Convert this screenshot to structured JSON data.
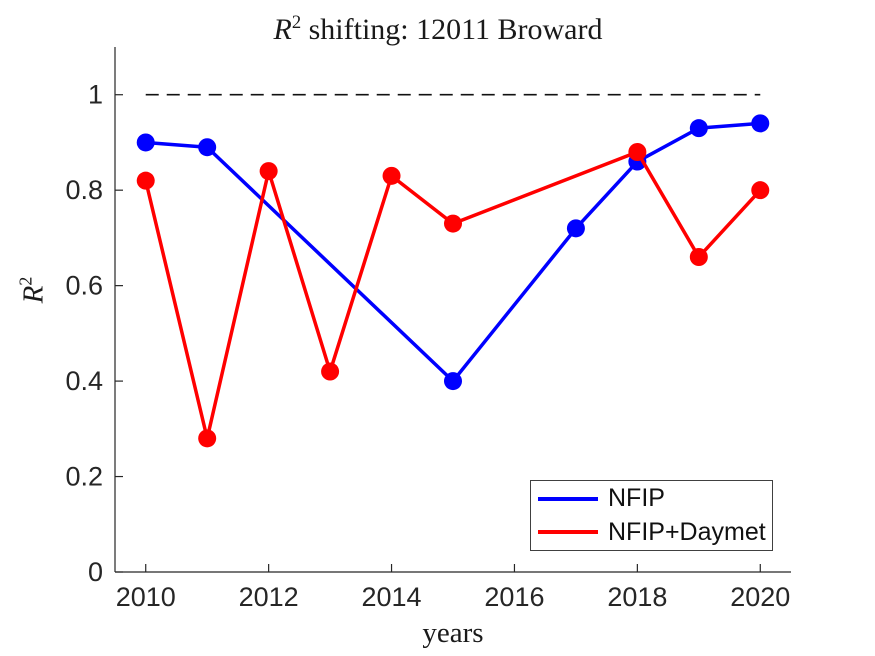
{
  "figure": {
    "background": "#ffffff",
    "axis_color": "#262626",
    "text_color": "#1a1a1a"
  },
  "chart_data": {
    "type": "line",
    "title": "R^2 shifting: 12011 Broward",
    "title_parts": {
      "var": "R",
      "sup": "2",
      "rest": " shifting: 12011 Broward"
    },
    "xlabel": "years",
    "ylabel": "R^2",
    "ylabel_parts": {
      "var": "R",
      "sup": "2"
    },
    "xlim": [
      2009.5,
      2020.5
    ],
    "ylim": [
      0,
      1.1
    ],
    "xticks": [
      2010,
      2012,
      2014,
      2016,
      2018,
      2020
    ],
    "yticks": [
      0,
      0.2,
      0.4,
      0.6,
      0.8,
      1
    ],
    "grid": false,
    "box": false,
    "reference_line": {
      "y": 1.0,
      "style": "dashed",
      "color": "#111111",
      "x_start": 2010,
      "x_end": 2020
    },
    "series": [
      {
        "name": "NFIP",
        "color": "#0000ff",
        "x": [
          2010,
          2011,
          2015,
          2017,
          2018,
          2019,
          2020
        ],
        "y": [
          0.9,
          0.89,
          0.4,
          0.72,
          0.86,
          0.93,
          0.94
        ]
      },
      {
        "name": "NFIP+Daymet",
        "color": "#ff0000",
        "x": [
          2010,
          2011,
          2012,
          2013,
          2014,
          2015,
          2018,
          2019,
          2020
        ],
        "y": [
          0.82,
          0.28,
          0.84,
          0.42,
          0.83,
          0.73,
          0.88,
          0.66,
          0.8
        ]
      }
    ],
    "legend": {
      "position": "southeast",
      "entries": [
        "NFIP",
        "NFIP+Daymet"
      ]
    }
  }
}
